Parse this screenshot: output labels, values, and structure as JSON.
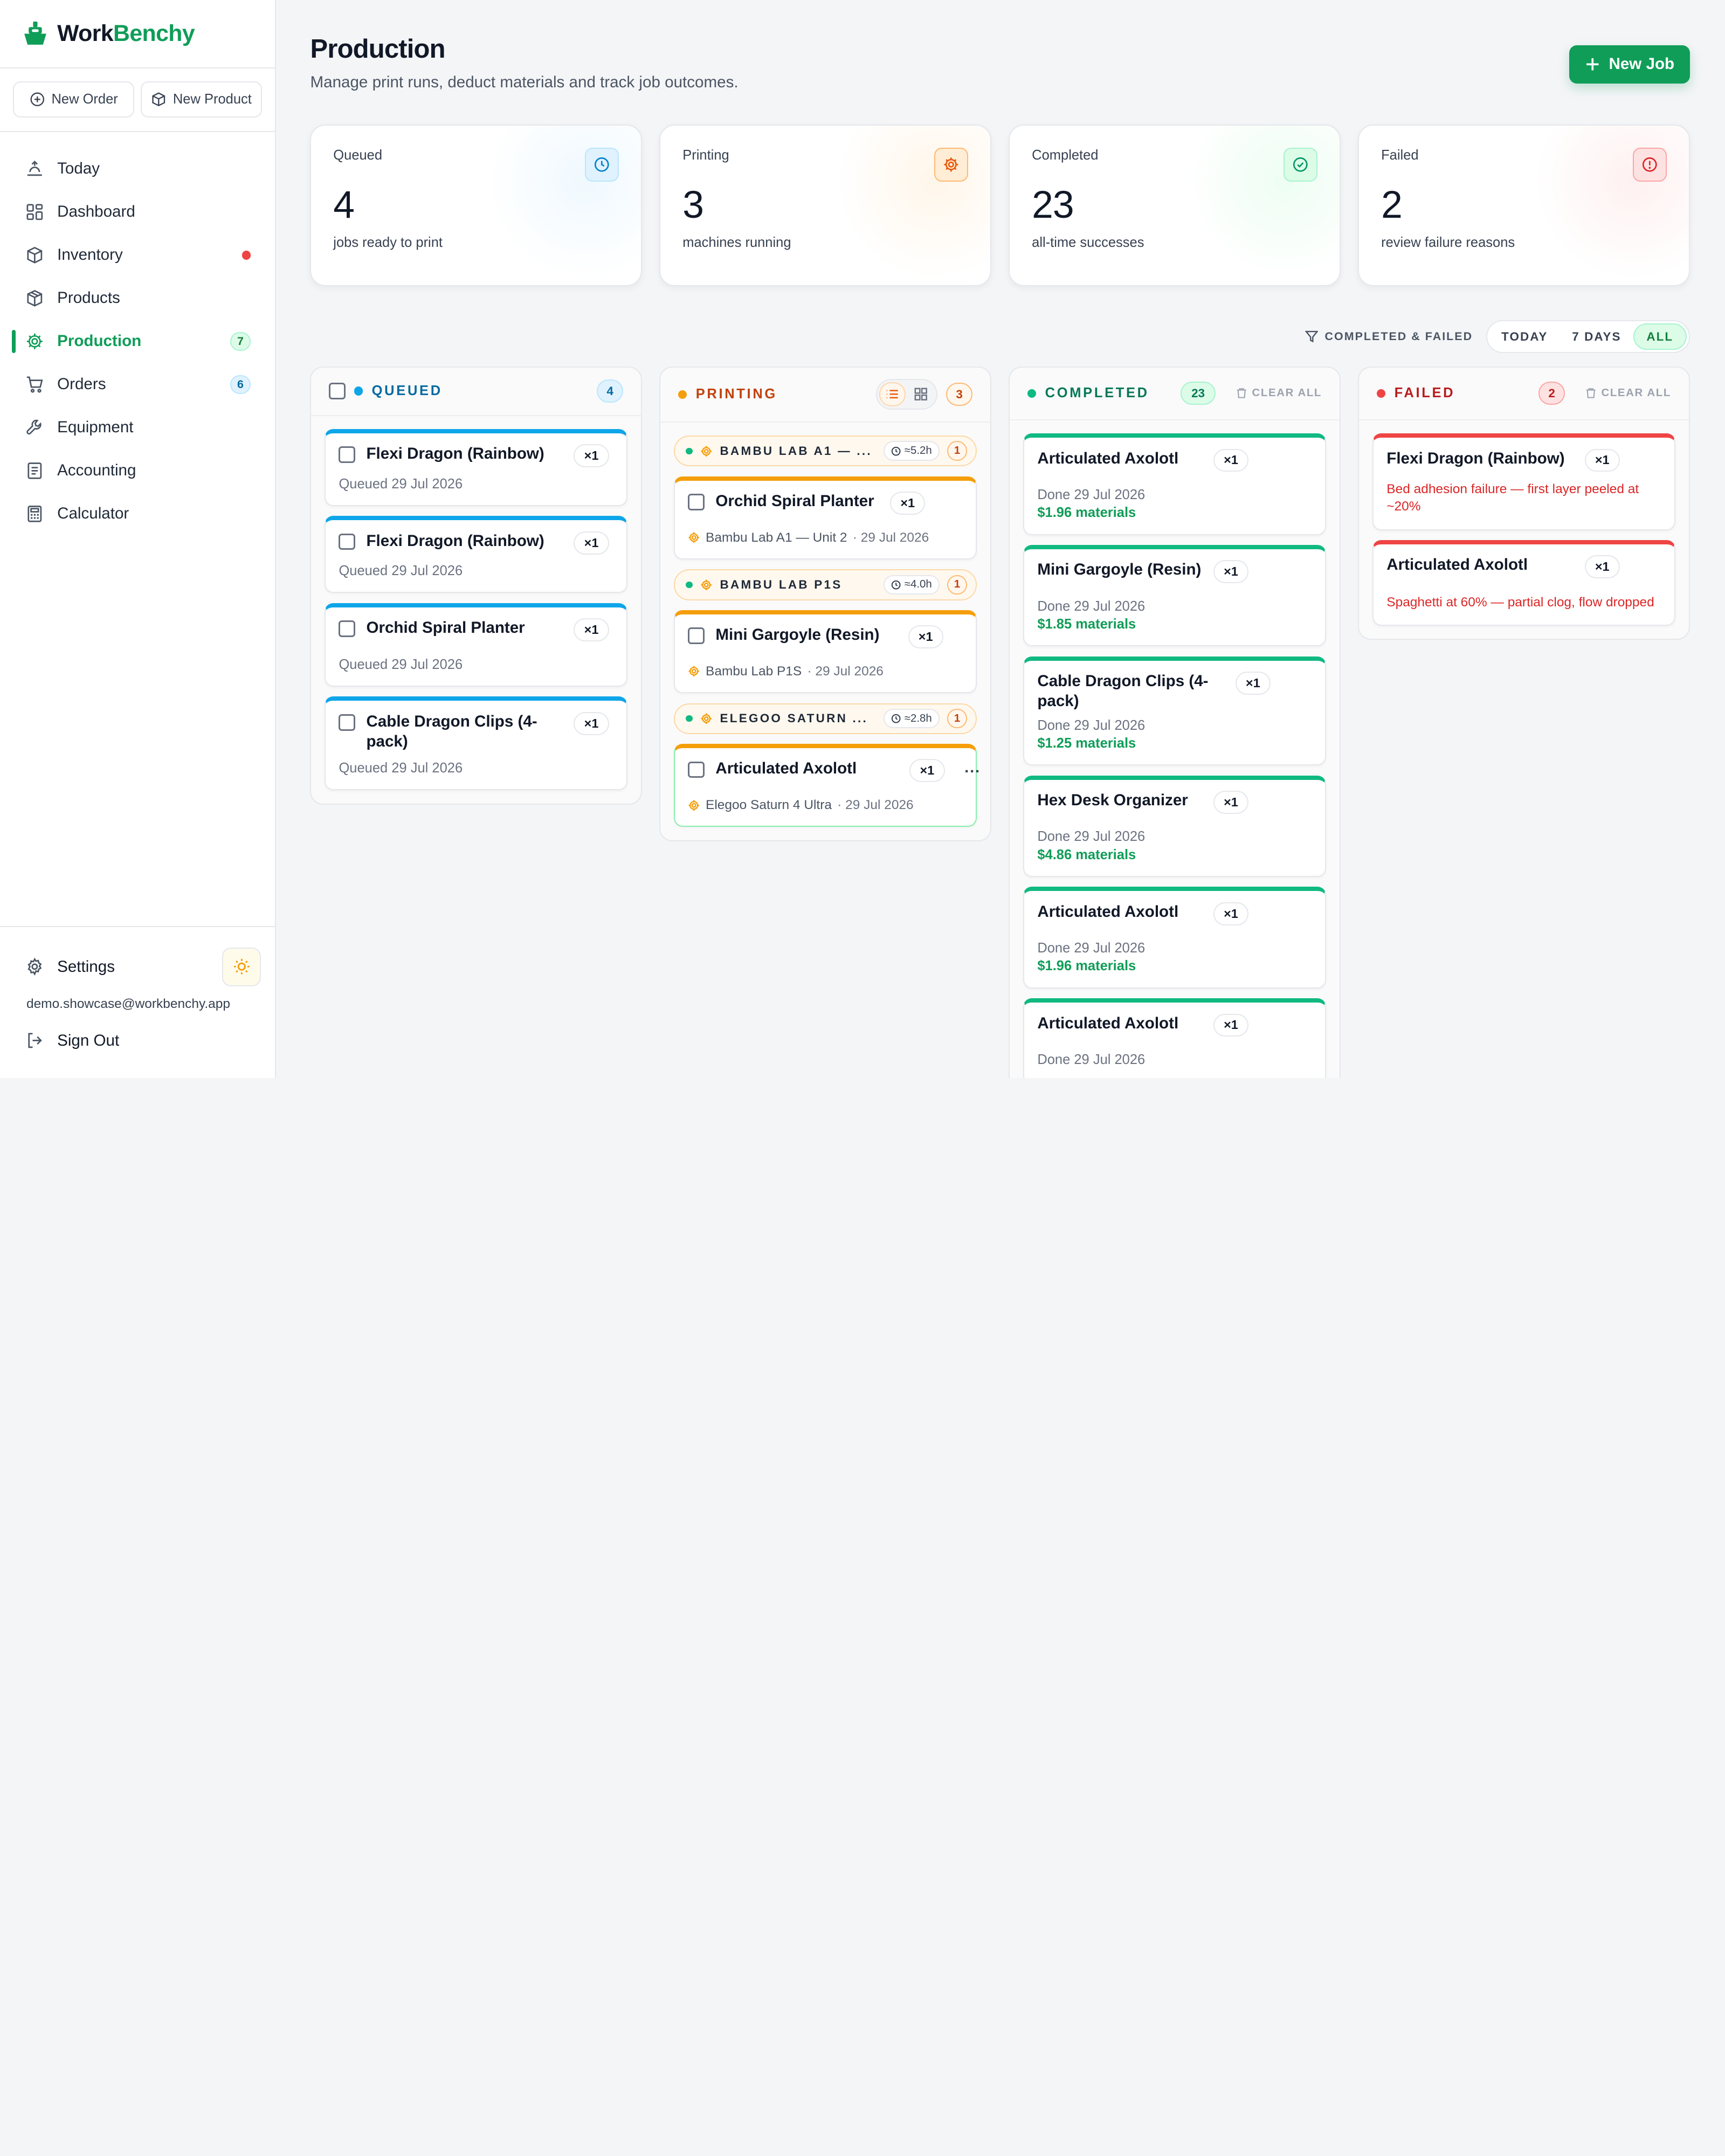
{
  "brand": {
    "work": "Work",
    "benchy": "Benchy"
  },
  "quick_actions": {
    "new_order": "New Order",
    "new_product": "New Product"
  },
  "nav": [
    {
      "label": "Today",
      "icon": "today-icon"
    },
    {
      "label": "Dashboard",
      "icon": "dashboard-icon"
    },
    {
      "label": "Inventory",
      "icon": "inventory-icon",
      "alert": true
    },
    {
      "label": "Products",
      "icon": "products-icon"
    },
    {
      "label": "Production",
      "icon": "production-icon",
      "badge": "7",
      "active": true
    },
    {
      "label": "Orders",
      "icon": "orders-icon",
      "badge": "6"
    },
    {
      "label": "Equipment",
      "icon": "equipment-icon"
    },
    {
      "label": "Accounting",
      "icon": "accounting-icon"
    },
    {
      "label": "Calculator",
      "icon": "calculator-icon"
    }
  ],
  "footer": {
    "settings": "Settings",
    "email": "demo.showcase@workbenchy.app",
    "sign_out": "Sign Out"
  },
  "page": {
    "title": "Production",
    "subtitle": "Manage print runs, deduct materials and track job outcomes.",
    "new_job": "New Job"
  },
  "stats": [
    {
      "label": "Queued",
      "value": "4",
      "caption": "jobs ready to print",
      "color": "#0ea5e9"
    },
    {
      "label": "Printing",
      "value": "3",
      "caption": "machines running",
      "color": "#f59e0b"
    },
    {
      "label": "Completed",
      "value": "23",
      "caption": "all-time successes",
      "color": "#10b981"
    },
    {
      "label": "Failed",
      "value": "2",
      "caption": "review failure reasons",
      "color": "#ef4444"
    }
  ],
  "filter": {
    "label": "COMPLETED & FAILED",
    "options": [
      "TODAY",
      "7 DAYS",
      "ALL"
    ],
    "selected": "ALL"
  },
  "columns": {
    "queued": {
      "title": "QUEUED",
      "count": "4",
      "cards": [
        {
          "title": "Flexi Dragon (Rainbow)",
          "qty": "×1",
          "meta": "Queued 29 Jul 2026"
        },
        {
          "title": "Flexi Dragon (Rainbow)",
          "qty": "×1",
          "meta": "Queued 29 Jul 2026"
        },
        {
          "title": "Orchid Spiral Planter",
          "qty": "×1",
          "meta": "Queued 29 Jul 2026"
        },
        {
          "title": "Cable Dragon Clips (4-pack)",
          "qty": "×1",
          "meta": "Queued 29 Jul 2026"
        }
      ]
    },
    "printing": {
      "title": "PRINTING",
      "count": "3",
      "groups": [
        {
          "name": "BAMBU LAB A1 — ...",
          "time": "≈5.2h",
          "count": "1",
          "card": {
            "title": "Orchid Spiral Planter",
            "qty": "×1",
            "machine": "Bambu Lab A1 — Unit 2",
            "date": "· 29 Jul 2026"
          }
        },
        {
          "name": "BAMBU LAB P1S",
          "time": "≈4.0h",
          "count": "1",
          "card": {
            "title": "Mini Gargoyle (Resin)",
            "qty": "×1",
            "machine": "Bambu Lab P1S",
            "date": "· 29 Jul 2026"
          }
        },
        {
          "name": "ELEGOO SATURN ...",
          "time": "≈2.8h",
          "count": "1",
          "card": {
            "title": "Articulated Axolotl",
            "qty": "×1",
            "machine": "Elegoo Saturn 4 Ultra",
            "date": "· 29 Jul 2026",
            "more": "..."
          }
        }
      ]
    },
    "completed": {
      "title": "COMPLETED",
      "count": "23",
      "clear": "CLEAR ALL",
      "cards": [
        {
          "title": "Articulated Axolotl",
          "qty": "×1",
          "meta": "Done 29 Jul 2026",
          "money": "$1.96 materials"
        },
        {
          "title": "Mini Gargoyle (Resin)",
          "qty": "×1",
          "meta": "Done 29 Jul 2026",
          "money": "$1.85 materials"
        },
        {
          "title": "Cable Dragon Clips (4-pack)",
          "qty": "×1",
          "meta": "Done 29 Jul 2026",
          "money": "$1.25 materials"
        },
        {
          "title": "Hex Desk Organizer",
          "qty": "×1",
          "meta": "Done 29 Jul 2026",
          "money": "$4.86 materials"
        },
        {
          "title": "Articulated Axolotl",
          "qty": "×1",
          "meta": "Done 29 Jul 2026",
          "money": "$1.96 materials"
        },
        {
          "title": "Articulated Axolotl",
          "qty": "×1",
          "meta": "Done 29 Jul 2026",
          "money": ""
        }
      ]
    },
    "failed": {
      "title": "FAILED",
      "count": "2",
      "clear": "CLEAR ALL",
      "cards": [
        {
          "title": "Flexi Dragon (Rainbow)",
          "qty": "×1",
          "error": "Bed adhesion failure — first layer peeled at ~20%"
        },
        {
          "title": "Articulated Axolotl",
          "qty": "×1",
          "error": "Spaghetti at 60% — partial clog, flow dropped"
        }
      ]
    }
  }
}
